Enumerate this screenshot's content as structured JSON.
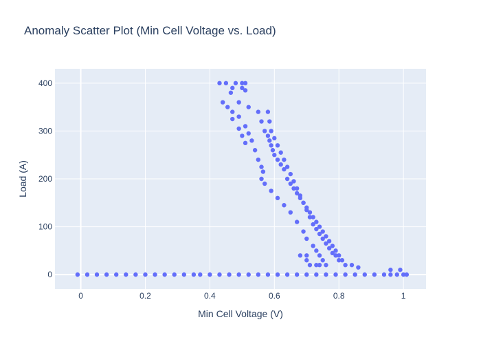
{
  "chart_data": {
    "type": "scatter",
    "title": "Anomaly Scatter Plot (Min Cell Voltage vs. Load)",
    "xlabel": "Min Cell Voltage (V)",
    "ylabel": "Load (A)",
    "xlim": [
      -0.08,
      1.07
    ],
    "ylim": [
      -30,
      430
    ],
    "xticks": [
      0,
      0.2,
      0.4,
      0.6,
      0.8,
      1
    ],
    "yticks": [
      0,
      100,
      200,
      300,
      400
    ],
    "xtick_labels": [
      "0",
      "0.2",
      "0.4",
      "0.6",
      "0.8",
      "1"
    ],
    "ytick_labels": [
      "0",
      "100",
      "200",
      "300",
      "400"
    ],
    "grid": true,
    "colors": {
      "marker": "#636efa",
      "plot_bg": "#e5ecf6",
      "grid": "#ffffff",
      "text": "#2a3f5f"
    },
    "series": [
      {
        "points": [
          [
            -0.01,
            0
          ],
          [
            0.02,
            0
          ],
          [
            0.05,
            0
          ],
          [
            0.08,
            0
          ],
          [
            0.11,
            0
          ],
          [
            0.14,
            0
          ],
          [
            0.17,
            0
          ],
          [
            0.2,
            0
          ],
          [
            0.23,
            0
          ],
          [
            0.26,
            0
          ],
          [
            0.29,
            0
          ],
          [
            0.32,
            0
          ],
          [
            0.35,
            0
          ],
          [
            0.37,
            0
          ],
          [
            0.4,
            0
          ],
          [
            0.43,
            0
          ],
          [
            0.46,
            0
          ],
          [
            0.49,
            0
          ],
          [
            0.52,
            0
          ],
          [
            0.55,
            0
          ],
          [
            0.58,
            0
          ],
          [
            0.61,
            0
          ],
          [
            0.64,
            0
          ],
          [
            0.67,
            0
          ],
          [
            0.7,
            0
          ],
          [
            0.73,
            0
          ],
          [
            0.76,
            0
          ],
          [
            0.79,
            0
          ],
          [
            0.82,
            0
          ],
          [
            0.85,
            0
          ],
          [
            0.88,
            0
          ],
          [
            0.91,
            0
          ],
          [
            0.94,
            0
          ],
          [
            0.96,
            0
          ],
          [
            0.98,
            0
          ],
          [
            1.0,
            0
          ],
          [
            1.01,
            0
          ],
          [
            0.96,
            10
          ],
          [
            0.99,
            10
          ],
          [
            0.43,
            400
          ],
          [
            0.45,
            400
          ],
          [
            0.48,
            400
          ],
          [
            0.5,
            400
          ],
          [
            0.51,
            400
          ],
          [
            0.5,
            390
          ],
          [
            0.51,
            385
          ],
          [
            0.47,
            390
          ],
          [
            0.465,
            380
          ],
          [
            0.49,
            360
          ],
          [
            0.52,
            350
          ],
          [
            0.55,
            340
          ],
          [
            0.56,
            320
          ],
          [
            0.57,
            300
          ],
          [
            0.58,
            290
          ],
          [
            0.585,
            280
          ],
          [
            0.59,
            270
          ],
          [
            0.595,
            260
          ],
          [
            0.6,
            250
          ],
          [
            0.61,
            240
          ],
          [
            0.62,
            230
          ],
          [
            0.63,
            220
          ],
          [
            0.64,
            200
          ],
          [
            0.65,
            190
          ],
          [
            0.66,
            180
          ],
          [
            0.67,
            170
          ],
          [
            0.68,
            160
          ],
          [
            0.69,
            150
          ],
          [
            0.7,
            140
          ],
          [
            0.71,
            130
          ],
          [
            0.72,
            120
          ],
          [
            0.73,
            110
          ],
          [
            0.74,
            100
          ],
          [
            0.75,
            90
          ],
          [
            0.76,
            80
          ],
          [
            0.77,
            70
          ],
          [
            0.78,
            60
          ],
          [
            0.79,
            50
          ],
          [
            0.8,
            40
          ],
          [
            0.81,
            30
          ],
          [
            0.82,
            20
          ],
          [
            0.84,
            20
          ],
          [
            0.86,
            15
          ],
          [
            0.47,
            340
          ],
          [
            0.49,
            330
          ],
          [
            0.51,
            310
          ],
          [
            0.52,
            295
          ],
          [
            0.53,
            280
          ],
          [
            0.54,
            260
          ],
          [
            0.55,
            240
          ],
          [
            0.56,
            225
          ],
          [
            0.565,
            215
          ],
          [
            0.56,
            200
          ],
          [
            0.57,
            190
          ],
          [
            0.59,
            175
          ],
          [
            0.61,
            160
          ],
          [
            0.63,
            145
          ],
          [
            0.65,
            130
          ],
          [
            0.67,
            110
          ],
          [
            0.69,
            90
          ],
          [
            0.7,
            75
          ],
          [
            0.72,
            60
          ],
          [
            0.73,
            50
          ],
          [
            0.74,
            40
          ],
          [
            0.75,
            30
          ],
          [
            0.73,
            20
          ],
          [
            0.76,
            20
          ],
          [
            0.44,
            360
          ],
          [
            0.455,
            350
          ],
          [
            0.47,
            325
          ],
          [
            0.49,
            305
          ],
          [
            0.5,
            290
          ],
          [
            0.51,
            275
          ],
          [
            0.58,
            340
          ],
          [
            0.585,
            320
          ],
          [
            0.59,
            300
          ],
          [
            0.6,
            285
          ],
          [
            0.61,
            270
          ],
          [
            0.62,
            255
          ],
          [
            0.63,
            240
          ],
          [
            0.64,
            225
          ],
          [
            0.65,
            210
          ],
          [
            0.66,
            195
          ],
          [
            0.67,
            180
          ],
          [
            0.68,
            165
          ],
          [
            0.69,
            150
          ],
          [
            0.7,
            135
          ],
          [
            0.71,
            120
          ],
          [
            0.72,
            105
          ],
          [
            0.73,
            95
          ],
          [
            0.74,
            85
          ],
          [
            0.75,
            75
          ],
          [
            0.76,
            65
          ],
          [
            0.77,
            55
          ],
          [
            0.78,
            45
          ],
          [
            0.79,
            40
          ],
          [
            0.8,
            30
          ],
          [
            0.68,
            40
          ],
          [
            0.7,
            40
          ],
          [
            0.7,
            30
          ],
          [
            0.71,
            20
          ],
          [
            0.74,
            20
          ]
        ]
      }
    ]
  }
}
